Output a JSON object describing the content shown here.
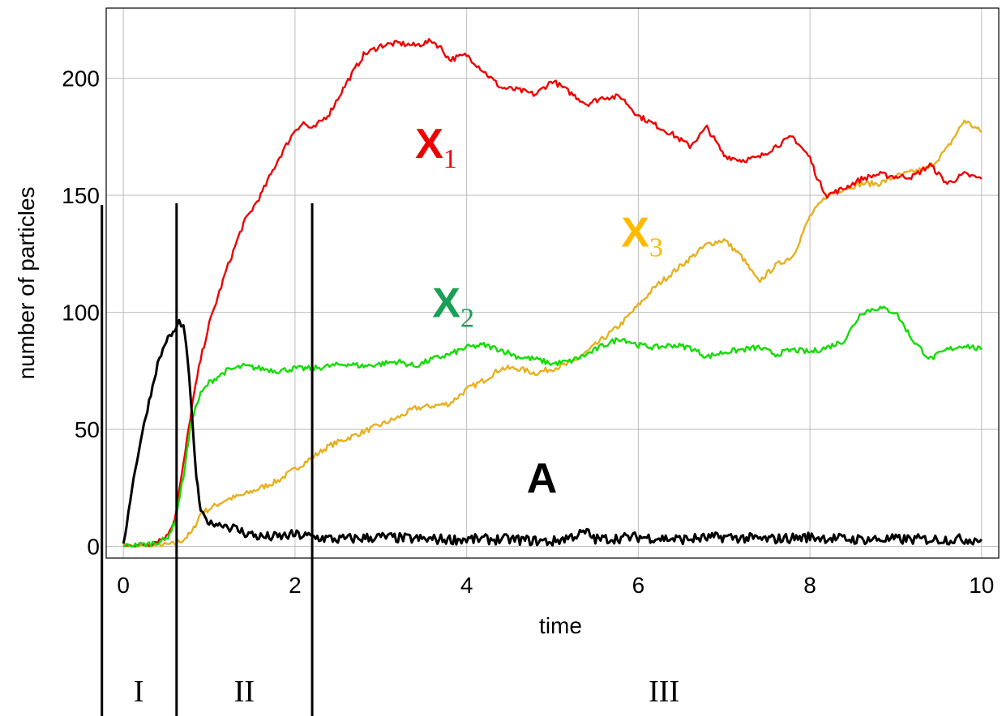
{
  "chart_data": {
    "type": "line",
    "title": "",
    "xlabel": "time",
    "ylabel": "number of particles",
    "xlim": [
      -0.2,
      10.2
    ],
    "ylim": [
      -5,
      230
    ],
    "xticks": [
      0,
      2,
      4,
      6,
      8,
      10
    ],
    "yticks": [
      0,
      50,
      100,
      150,
      200
    ],
    "xtick_labels": [
      "0",
      "2",
      "4",
      "6",
      "8",
      "10"
    ],
    "ytick_labels": [
      "0",
      "50",
      "100",
      "150",
      "200"
    ],
    "grid": true,
    "series": [
      {
        "name": "X",
        "subscript": "1",
        "color": "#ee0000",
        "x": [
          0,
          0.3,
          0.5,
          0.6,
          0.7,
          0.8,
          0.9,
          1.0,
          1.2,
          1.4,
          1.6,
          1.8,
          2.0,
          2.1,
          2.2,
          2.4,
          2.6,
          2.8,
          3.0,
          3.2,
          3.4,
          3.6,
          3.7,
          3.8,
          4.0,
          4.2,
          4.4,
          4.6,
          4.8,
          5.0,
          5.2,
          5.4,
          5.6,
          5.8,
          6.0,
          6.2,
          6.4,
          6.6,
          6.8,
          7.0,
          7.2,
          7.4,
          7.6,
          7.8,
          8.0,
          8.1,
          8.2,
          8.4,
          8.6,
          8.8,
          9.0,
          9.2,
          9.4,
          9.6,
          9.8,
          10.0
        ],
        "y": [
          0,
          1,
          4,
          12,
          35,
          60,
          80,
          95,
          118,
          138,
          150,
          165,
          178,
          181,
          178,
          185,
          198,
          210,
          214,
          215,
          214,
          216,
          213,
          208,
          210,
          203,
          196,
          195,
          193,
          199,
          194,
          189,
          192,
          192,
          184,
          180,
          176,
          171,
          179,
          167,
          165,
          166,
          171,
          175,
          166,
          156,
          150,
          153,
          157,
          159,
          158,
          158,
          163,
          155,
          159,
          157
        ]
      },
      {
        "name": "X",
        "subscript": "2",
        "color": "#11dd00",
        "x": [
          0,
          0.3,
          0.5,
          0.6,
          0.7,
          0.8,
          0.9,
          1.0,
          1.2,
          1.4,
          1.6,
          1.8,
          2.0,
          2.2,
          2.4,
          2.6,
          2.8,
          3.0,
          3.2,
          3.4,
          3.6,
          3.8,
          4.0,
          4.2,
          4.4,
          4.6,
          4.8,
          5.0,
          5.2,
          5.4,
          5.6,
          5.8,
          6.0,
          6.2,
          6.4,
          6.6,
          6.8,
          7.0,
          7.2,
          7.4,
          7.6,
          7.8,
          8.0,
          8.2,
          8.4,
          8.6,
          8.8,
          9.0,
          9.2,
          9.4,
          9.6,
          9.8,
          10.0
        ],
        "y": [
          0,
          1,
          3,
          10,
          30,
          55,
          65,
          70,
          75,
          77,
          76,
          75,
          76,
          76,
          77,
          78,
          77,
          78,
          79,
          77,
          80,
          82,
          85,
          86,
          84,
          81,
          80,
          78,
          79,
          82,
          86,
          89,
          86,
          85,
          86,
          85,
          81,
          83,
          84,
          85,
          82,
          84,
          83,
          85,
          88,
          100,
          102,
          100,
          88,
          80,
          84,
          86,
          84
        ]
      },
      {
        "name": "X",
        "subscript": "3",
        "color": "#e6b020",
        "x": [
          0,
          0.3,
          0.6,
          0.7,
          0.8,
          0.9,
          1.0,
          1.2,
          1.4,
          1.6,
          1.8,
          2.0,
          2.2,
          2.4,
          2.6,
          2.8,
          3.0,
          3.2,
          3.4,
          3.6,
          3.8,
          4.0,
          4.2,
          4.4,
          4.6,
          4.8,
          5.0,
          5.2,
          5.4,
          5.6,
          5.8,
          6.0,
          6.2,
          6.4,
          6.6,
          6.8,
          7.0,
          7.2,
          7.4,
          7.6,
          7.8,
          8.0,
          8.2,
          8.4,
          8.6,
          8.8,
          9.0,
          9.2,
          9.4,
          9.6,
          9.8,
          10.0
        ],
        "y": [
          0,
          0,
          1,
          3,
          6,
          14,
          16,
          20,
          22,
          25,
          28,
          33,
          38,
          43,
          46,
          49,
          52,
          55,
          59,
          60,
          61,
          67,
          71,
          76,
          76,
          74,
          76,
          78,
          83,
          89,
          95,
          103,
          111,
          117,
          123,
          129,
          131,
          124,
          113,
          120,
          124,
          141,
          150,
          153,
          155,
          155,
          158,
          160,
          162,
          170,
          182,
          177
        ]
      },
      {
        "name": "A",
        "subscript": "",
        "color": "#000000",
        "x": [
          0,
          0.1,
          0.2,
          0.3,
          0.4,
          0.5,
          0.6,
          0.65,
          0.7,
          0.75,
          0.8,
          0.85,
          0.9,
          0.95,
          1.0,
          1.2,
          1.4,
          1.6,
          1.8,
          2.0,
          2.2,
          2.5,
          3.0,
          3.5,
          4.0,
          4.5,
          5.0,
          5.4,
          5.5,
          6.0,
          6.5,
          7.0,
          7.5,
          8.0,
          8.5,
          9.0,
          9.5,
          10.0
        ],
        "y": [
          0,
          25,
          45,
          62,
          78,
          88,
          92,
          96,
          94,
          80,
          55,
          30,
          15,
          12,
          10,
          9,
          6,
          4,
          4,
          5,
          4,
          3,
          4,
          3,
          3,
          3,
          2,
          6,
          3,
          4,
          3,
          4,
          3,
          4,
          3,
          3,
          3,
          3
        ]
      }
    ],
    "series_labels": [
      {
        "text": "X",
        "sub": "1",
        "color": "#ee0000",
        "x": 3.4,
        "y": 166
      },
      {
        "text": "X",
        "sub": "2",
        "color": "#1aa055",
        "x": 3.6,
        "y": 98
      },
      {
        "text": "X",
        "sub": "3",
        "color": "#ffbb00",
        "x": 5.8,
        "y": 128
      },
      {
        "text": "A",
        "sub": "",
        "color": "#000000",
        "x": 4.7,
        "y": 23
      }
    ],
    "phase_boundaries": [
      -0.25,
      0.62,
      2.2
    ],
    "phase_labels": [
      {
        "text": "I",
        "x": 0.18
      },
      {
        "text": "II",
        "x": 1.41
      },
      {
        "text": "III",
        "x": 6.3
      }
    ]
  }
}
